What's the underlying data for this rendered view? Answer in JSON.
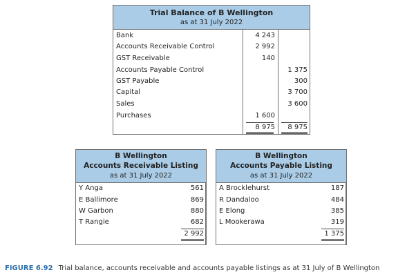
{
  "trial_balance": {
    "title": "Trial Balance of B Wellington",
    "subtitle": "as at 31 July 2022",
    "rows": [
      {
        "label": "Bank",
        "debit": "4 243",
        "credit": ""
      },
      {
        "label": "Accounts Receivable Control",
        "debit": "2 992",
        "credit": ""
      },
      {
        "label": "GST Receivable",
        "debit": "140",
        "credit": ""
      },
      {
        "label": "Accounts Payable Control",
        "debit": "",
        "credit": "1 375"
      },
      {
        "label": "GST Payable",
        "debit": "",
        "credit": "300"
      },
      {
        "label": "Capital",
        "debit": "",
        "credit": "3 700"
      },
      {
        "label": "Sales",
        "debit": "",
        "credit": "3 600"
      },
      {
        "label": "Purchases",
        "debit": "1 600",
        "credit": ""
      }
    ],
    "total_debit": "8 975",
    "total_credit": "8 975"
  },
  "receivable": {
    "title1": "B Wellington",
    "title2": "Accounts Receivable Listing",
    "subtitle": "as at 31 July 2022",
    "rows": [
      {
        "label": "Y Anga",
        "value": "561"
      },
      {
        "label": "E Ballimore",
        "value": "869"
      },
      {
        "label": "W Garbon",
        "value": "880"
      },
      {
        "label": "T Rangie",
        "value": "682"
      }
    ],
    "total": "2 992"
  },
  "payable": {
    "title1": "B Wellington",
    "title2": "Accounts Payable Listing",
    "subtitle": "as at 31 July 2022",
    "rows": [
      {
        "label": "A Brocklehurst",
        "value": "187"
      },
      {
        "label": "R Dandaloo",
        "value": "484"
      },
      {
        "label": "E Elong",
        "value": "385"
      },
      {
        "label": "L Mookerawa",
        "value": "319"
      }
    ],
    "total": "1 375"
  },
  "caption": {
    "label": "FIGURE 6.92",
    "text": "Trial balance, accounts receivable and accounts payable listings as at 31 July of B Wellington"
  }
}
